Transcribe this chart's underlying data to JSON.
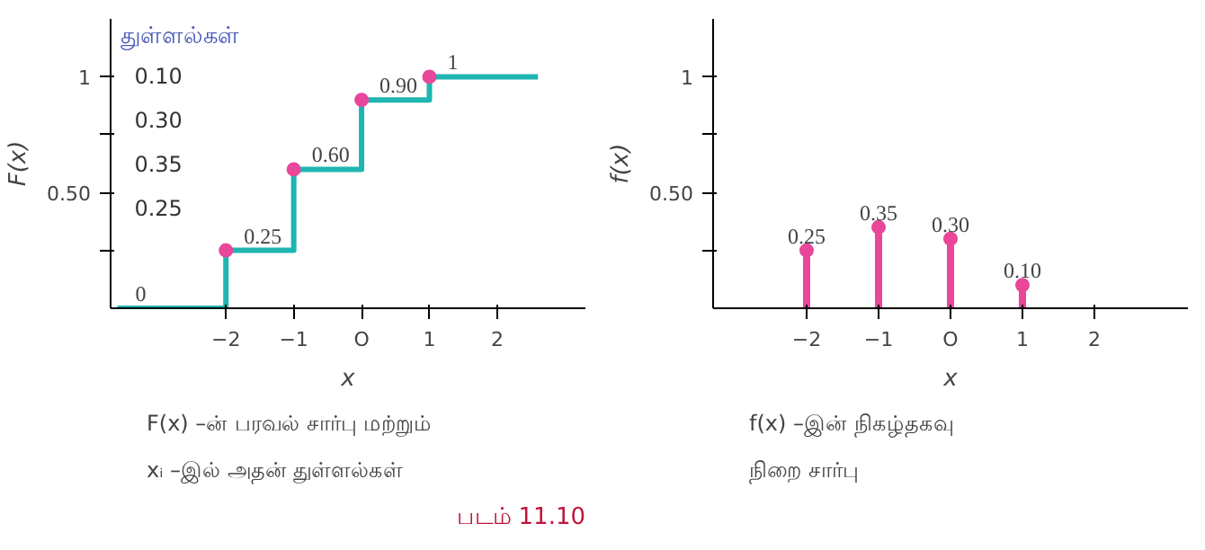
{
  "chart_data": [
    {
      "type": "step",
      "title": "F(x) –ன் பரவல் சார்பு மற்றும் xᵢ –இல் அதன் துள்ளல்கள்",
      "ylabel": "F(x)",
      "xlabel": "x",
      "x": [
        -3.6,
        -2,
        -1,
        0,
        1,
        2.6
      ],
      "series": [
        {
          "color": "#1fb5b0",
          "values": [
            0,
            0.25,
            0.6,
            0.9,
            1,
            1
          ],
          "value_labels": [
            "0",
            "0.25",
            "0.60",
            "0.90",
            "1",
            null
          ]
        }
      ],
      "marker": "circle",
      "xlim": [
        -3.7,
        3.3
      ],
      "ylim": [
        0,
        1.25
      ],
      "xticks": [
        {
          "value": -2,
          "label": "−2"
        },
        {
          "value": -1,
          "label": "−1"
        },
        {
          "value": 0,
          "label": "O"
        },
        1,
        2
      ],
      "yticks": [
        {
          "value": 0.25,
          "label": null
        },
        {
          "value": 0.5,
          "label": "0.50"
        },
        {
          "value": 0.75,
          "label": null
        },
        1
      ],
      "grid": false,
      "annotations": [
        "துள்ளல்கள்",
        "0.10",
        "0.30",
        "0.35",
        "0.25",
        "படம் 11.10"
      ]
    },
    {
      "type": "lollipop",
      "title": "f(x) –இன் நிகழ்தகவு நிறை சார்பு",
      "ylabel": "f(x)",
      "xlabel": "x",
      "x": [
        -2,
        -1,
        0,
        1
      ],
      "series": [
        {
          "color": "#e8479a",
          "values": [
            0.25,
            0.35,
            0.3,
            0.1
          ],
          "value_labels": [
            "0.25",
            "0.35",
            "0.30",
            "0.10"
          ]
        }
      ],
      "marker": "circle",
      "xlim": [
        -3.3,
        3.3
      ],
      "ylim": [
        0,
        1.25
      ],
      "xticks": [
        {
          "value": -2,
          "label": "−2"
        },
        {
          "value": -1,
          "label": "−1"
        },
        {
          "value": 0,
          "label": "O"
        },
        1,
        2
      ],
      "yticks": [
        {
          "value": 0.25,
          "label": null
        },
        {
          "value": 0.5,
          "label": "0.50"
        },
        {
          "value": 0.75,
          "label": null
        },
        1
      ],
      "grid": false
    }
  ]
}
